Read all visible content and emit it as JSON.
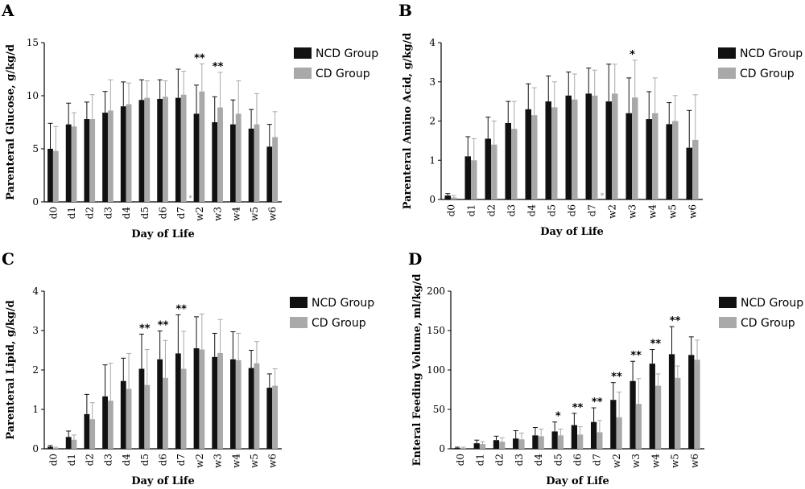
{
  "colors": {
    "ncd": "#111111",
    "cd": "#a9a9a9",
    "axis": "#000000"
  },
  "chart_data": [
    {
      "panel": "A",
      "type": "bar",
      "ylabel": "Parenteral Glucose, g/kg/d",
      "xlabel": "Day of Life",
      "categories": [
        "d0",
        "d1",
        "d2",
        "d3",
        "d4",
        "d5",
        "d6",
        "d7",
        "w2",
        "w3",
        "w4",
        "w5",
        "w6"
      ],
      "ylim": [
        0,
        15
      ],
      "yticks": [
        0,
        5,
        10,
        15
      ],
      "legend": "right",
      "series": [
        {
          "name": "NCD Group",
          "values": [
            5.0,
            7.3,
            7.8,
            8.4,
            9.0,
            9.6,
            9.7,
            9.8,
            8.3,
            7.5,
            7.3,
            6.9,
            5.2
          ],
          "errors": [
            2.4,
            2.0,
            1.6,
            2.0,
            2.3,
            1.9,
            1.8,
            2.7,
            2.7,
            2.4,
            2.3,
            1.8,
            2.1
          ]
        },
        {
          "name": "CD Group",
          "values": [
            4.8,
            7.1,
            7.8,
            8.6,
            9.2,
            9.8,
            9.9,
            10.1,
            10.4,
            8.9,
            8.3,
            7.3,
            6.1
          ],
          "errors": [
            2.3,
            1.3,
            2.3,
            2.9,
            2.0,
            1.6,
            1.5,
            2.2,
            2.6,
            3.3,
            3.1,
            2.9,
            2.4
          ]
        }
      ],
      "annotations": [
        {
          "category": "w2",
          "text": "**"
        },
        {
          "category": "w3",
          "text": "**"
        },
        {
          "category": "d7",
          "text": "*"
        }
      ]
    },
    {
      "panel": "B",
      "type": "bar",
      "ylabel": "Parenteral Amino Acid, g/kg/d",
      "xlabel": "Day of Life",
      "categories": [
        "d0",
        "d1",
        "d2",
        "d3",
        "d4",
        "d5",
        "d6",
        "d7",
        "w2",
        "w3",
        "w4",
        "w5",
        "w6"
      ],
      "ylim": [
        0,
        4
      ],
      "yticks": [
        0,
        1,
        2,
        3,
        4
      ],
      "legend": "right",
      "series": [
        {
          "name": "NCD Group",
          "values": [
            0.1,
            1.1,
            1.55,
            1.95,
            2.3,
            2.5,
            2.65,
            2.7,
            2.5,
            2.2,
            2.05,
            1.92,
            1.32
          ],
          "errors": [
            0.05,
            0.5,
            0.55,
            0.55,
            0.65,
            0.65,
            0.6,
            0.65,
            0.95,
            0.9,
            0.7,
            0.55,
            0.95
          ]
        },
        {
          "name": "CD Group",
          "values": [
            0.05,
            1.0,
            1.4,
            1.8,
            2.15,
            2.35,
            2.55,
            2.65,
            2.7,
            2.6,
            2.2,
            2.0,
            1.52
          ],
          "errors": [
            0.05,
            0.55,
            0.6,
            0.7,
            0.7,
            0.65,
            0.65,
            0.65,
            0.75,
            0.95,
            0.9,
            0.65,
            1.15
          ]
        }
      ],
      "annotations": [
        {
          "category": "w3",
          "text": "*"
        },
        {
          "category": "d7",
          "text": "*"
        }
      ]
    },
    {
      "panel": "C",
      "type": "bar",
      "ylabel": "Parenteral Lipid, g/kg/d",
      "xlabel": "Day of Life",
      "categories": [
        "d0",
        "d1",
        "d2",
        "d3",
        "d4",
        "d5",
        "d6",
        "d7",
        "w2",
        "w3",
        "w4",
        "w5",
        "w6"
      ],
      "ylim": [
        0,
        4
      ],
      "yticks": [
        0,
        1,
        2,
        3,
        4
      ],
      "legend": "right",
      "series": [
        {
          "name": "NCD Group",
          "values": [
            0.05,
            0.3,
            0.88,
            1.33,
            1.72,
            2.03,
            2.27,
            2.42,
            2.55,
            2.33,
            2.27,
            2.05,
            1.55
          ],
          "errors": [
            0.03,
            0.15,
            0.5,
            0.8,
            0.58,
            0.88,
            0.72,
            0.98,
            0.8,
            0.6,
            0.7,
            0.45,
            0.35
          ]
        },
        {
          "name": "CD Group",
          "values": [
            0.02,
            0.23,
            0.75,
            1.22,
            1.52,
            1.62,
            1.8,
            2.03,
            2.52,
            2.43,
            2.25,
            2.17,
            1.6
          ],
          "errors": [
            0.02,
            0.12,
            0.42,
            0.95,
            0.9,
            0.9,
            0.95,
            0.95,
            0.9,
            0.85,
            0.68,
            0.55,
            0.43
          ]
        }
      ],
      "annotations": [
        {
          "category": "d5",
          "text": "**"
        },
        {
          "category": "d6",
          "text": "**"
        },
        {
          "category": "d7",
          "text": "**"
        }
      ]
    },
    {
      "panel": "D",
      "type": "bar",
      "ylabel": "Enteral Feeding Volume, ml/kg/d",
      "xlabel": "Day of Life",
      "categories": [
        "d0",
        "d1",
        "d2",
        "d3",
        "d4",
        "d5",
        "d6",
        "d7",
        "w2",
        "w3",
        "w4",
        "w5",
        "w6"
      ],
      "ylim": [
        0,
        200
      ],
      "yticks": [
        0,
        50,
        100,
        150,
        200
      ],
      "legend": "right",
      "series": [
        {
          "name": "NCD Group",
          "values": [
            1,
            7,
            11,
            13,
            17,
            22,
            30,
            34,
            62,
            86,
            108,
            120,
            119
          ],
          "errors": [
            1,
            4,
            5,
            10,
            10,
            12,
            15,
            18,
            22,
            25,
            18,
            35,
            23
          ]
        },
        {
          "name": "CD Group",
          "values": [
            1,
            6,
            9,
            12,
            16,
            17,
            18,
            21,
            40,
            57,
            80,
            90,
            113
          ],
          "errors": [
            1,
            3,
            5,
            8,
            9,
            8,
            10,
            15,
            32,
            32,
            15,
            15,
            25
          ]
        }
      ],
      "annotations": [
        {
          "category": "d5",
          "text": "*"
        },
        {
          "category": "d6",
          "text": "**"
        },
        {
          "category": "d7",
          "text": "**"
        },
        {
          "category": "w2",
          "text": "**"
        },
        {
          "category": "w3",
          "text": "**"
        },
        {
          "category": "w4",
          "text": "**"
        },
        {
          "category": "w5",
          "text": "**"
        }
      ]
    }
  ]
}
